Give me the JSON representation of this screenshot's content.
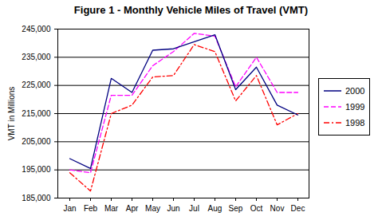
{
  "chart_data": {
    "type": "line",
    "title": "Figure 1 - Monthly Vehicle Miles of Travel (VMT)",
    "y_label": "VMT in Millions",
    "categories": [
      "Jan",
      "Feb",
      "Mar",
      "Apr",
      "May",
      "Jun",
      "Jul",
      "Aug",
      "Sep",
      "Oct",
      "Nov",
      "Dec"
    ],
    "series": [
      {
        "name": "2000",
        "color": "#000080",
        "line_style": "solid",
        "values": [
          199000,
          195500,
          227500,
          222500,
          237500,
          238000,
          240500,
          243000,
          223500,
          231500,
          218000,
          214500
        ]
      },
      {
        "name": "1999",
        "color": "#ff00ff",
        "line_style": "dashed",
        "values": [
          195000,
          194000,
          221500,
          221500,
          232000,
          237000,
          243500,
          242500,
          224500,
          235000,
          222500,
          222500
        ]
      },
      {
        "name": "1998",
        "color": "#ff0000",
        "line_style": "dashdot",
        "values": [
          194000,
          187500,
          215000,
          218000,
          228000,
          228500,
          239500,
          237000,
          219500,
          228500,
          211000,
          215000
        ]
      }
    ],
    "ylim": [
      185000,
      245000
    ],
    "yticks": [
      {
        "value": 185000,
        "label": "185,000"
      },
      {
        "value": 195000,
        "label": "195,000"
      },
      {
        "value": 205000,
        "label": "205,000"
      },
      {
        "value": 215000,
        "label": "215,000"
      },
      {
        "value": 225000,
        "label": "225,000"
      },
      {
        "value": 235000,
        "label": "235,000"
      },
      {
        "value": 245000,
        "label": "245,000"
      }
    ],
    "grid": true,
    "legend": "right"
  }
}
